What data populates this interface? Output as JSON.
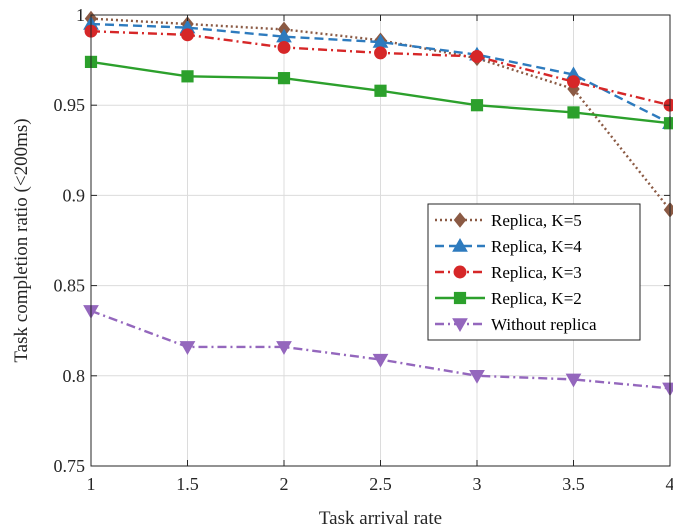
{
  "chart_data": {
    "type": "line",
    "xlabel": "Task arrival rate",
    "ylabel": "Task completion ratio (<200ms)",
    "xlim": [
      1,
      4
    ],
    "ylim": [
      0.75,
      1
    ],
    "xticks": [
      1,
      1.5,
      2,
      2.5,
      3,
      3.5,
      4
    ],
    "yticks": [
      0.75,
      0.8,
      0.85,
      0.9,
      0.95,
      1
    ],
    "xtick_labels": [
      "1",
      "1.5",
      "2",
      "2.5",
      "3",
      "3.5",
      "4"
    ],
    "ytick_labels": [
      "0.75",
      "0.8",
      "0.85",
      "0.9",
      "0.95",
      "1"
    ],
    "grid": true,
    "legend_position": "right",
    "x": [
      1,
      1.5,
      2,
      2.5,
      3,
      3.5,
      4
    ],
    "series": [
      {
        "name": "Replica, K=5",
        "values": [
          0.998,
          0.995,
          0.992,
          0.986,
          0.976,
          0.959,
          0.892
        ],
        "color": "#8B5A44",
        "dash": "2,3",
        "marker": "diamond"
      },
      {
        "name": "Replica, K=4",
        "values": [
          0.995,
          0.993,
          0.988,
          0.985,
          0.978,
          0.967,
          0.94
        ],
        "color": "#2E7BBE",
        "dash": "9,5",
        "marker": "triangle-up"
      },
      {
        "name": "Replica, K=3",
        "values": [
          0.991,
          0.989,
          0.982,
          0.979,
          0.977,
          0.963,
          0.95
        ],
        "color": "#D62728",
        "dash": "9,4,2,4",
        "marker": "circle"
      },
      {
        "name": "Replica, K=2",
        "values": [
          0.974,
          0.966,
          0.965,
          0.958,
          0.95,
          0.946,
          0.94
        ],
        "color": "#2CA02C",
        "dash": "",
        "marker": "square"
      },
      {
        "name": "Without replica",
        "values": [
          0.836,
          0.816,
          0.816,
          0.809,
          0.8,
          0.798,
          0.793
        ],
        "color": "#9467BD",
        "dash": "9,4,2,4",
        "marker": "triangle-down"
      }
    ]
  }
}
